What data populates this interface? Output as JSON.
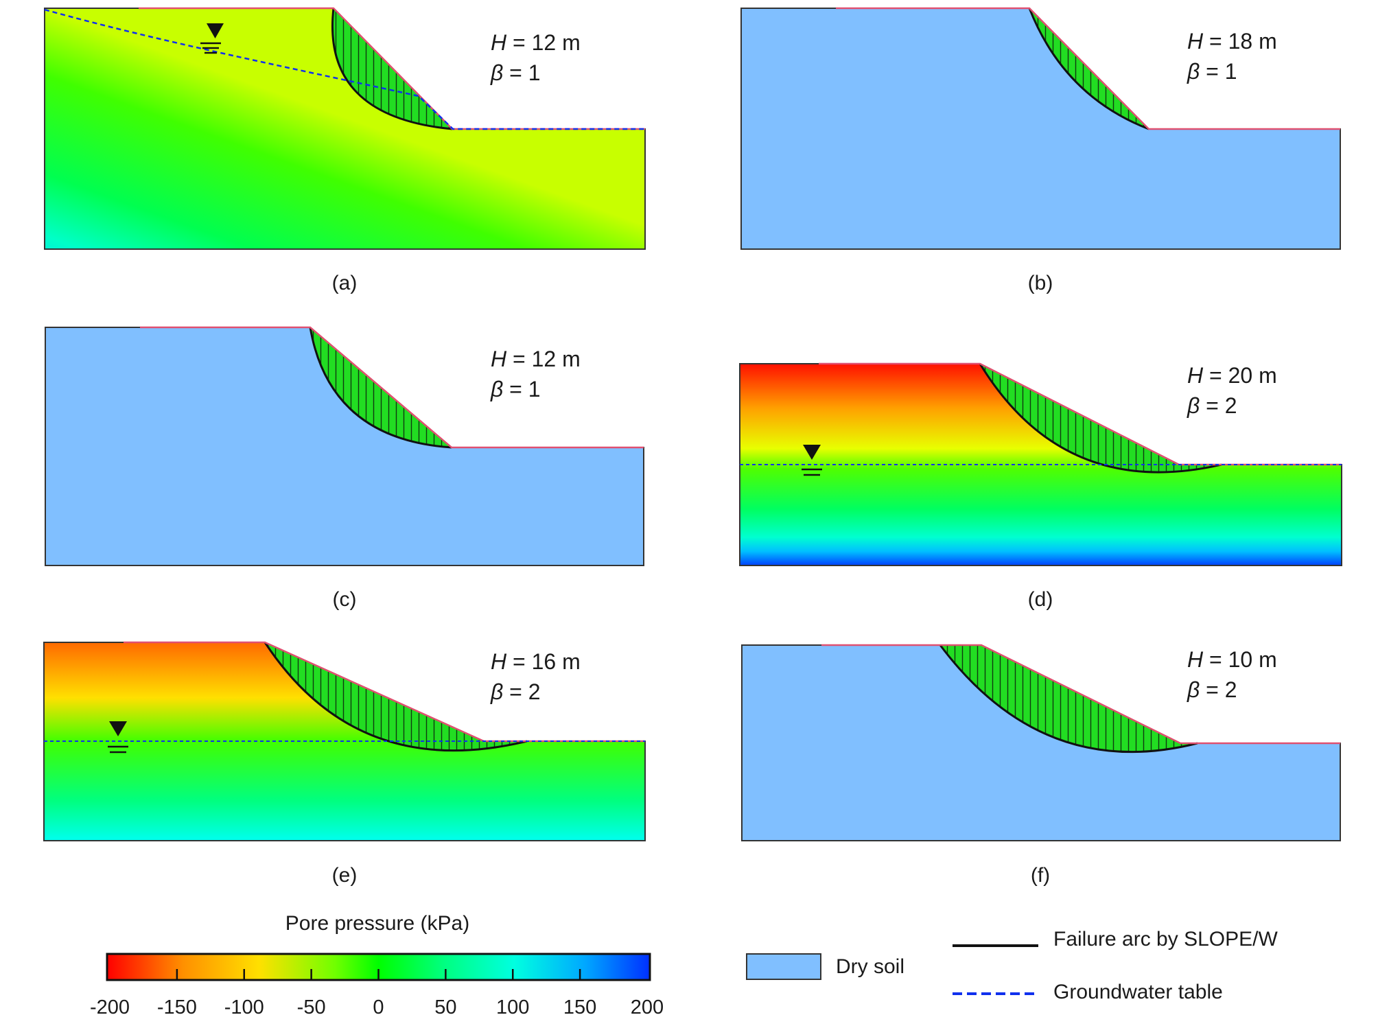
{
  "panels": [
    {
      "id": "a",
      "label": "(a)",
      "H_var": "H",
      "H_text": " = 12 m",
      "beta_var": "β",
      "beta_text": " = 1",
      "fill": "pore-pressure",
      "water_table": "inclined"
    },
    {
      "id": "b",
      "label": "(b)",
      "H_var": "H",
      "H_text": " = 18 m",
      "beta_var": "β",
      "beta_text": " = 1",
      "fill": "dry-soil",
      "water_table": "none"
    },
    {
      "id": "c",
      "label": "(c)",
      "H_var": "H",
      "H_text": " = 12 m",
      "beta_var": "β",
      "beta_text": " = 1",
      "fill": "dry-soil",
      "water_table": "none"
    },
    {
      "id": "d",
      "label": "(d)",
      "H_var": "H",
      "H_text": " = 20 m",
      "beta_var": "β",
      "beta_text": " = 2",
      "fill": "pore-pressure",
      "water_table": "horizontal"
    },
    {
      "id": "e",
      "label": "(e)",
      "H_var": "H",
      "H_text": " = 16 m",
      "beta_var": "β",
      "beta_text": " = 2",
      "fill": "pore-pressure",
      "water_table": "horizontal"
    },
    {
      "id": "f",
      "label": "(f)",
      "H_var": "H",
      "H_text": " = 10 m",
      "beta_var": "β",
      "beta_text": " = 2",
      "fill": "dry-soil",
      "water_table": "none"
    }
  ],
  "colorbar": {
    "title": "Pore pressure (kPa)",
    "ticks": [
      "-200",
      "-150",
      "-100",
      "-50",
      "0",
      "50",
      "100",
      "150",
      "200"
    ],
    "colors": [
      "#ff0000",
      "#ffb000",
      "#f0ff00",
      "#00ff00",
      "#00ffb0",
      "#00e8ff",
      "#0050ff",
      "#0010cc"
    ]
  },
  "legend": {
    "dry_soil": "Dry soil",
    "failure_arc": "Failure arc by SLOPE/W",
    "groundwater": "Groundwater  table"
  },
  "colors": {
    "dry_soil": "#80bfff",
    "failure_mass": "#22dd22",
    "slope_line": "#e05070",
    "failure_arc": "#111111",
    "groundwater": "#1030ee"
  }
}
